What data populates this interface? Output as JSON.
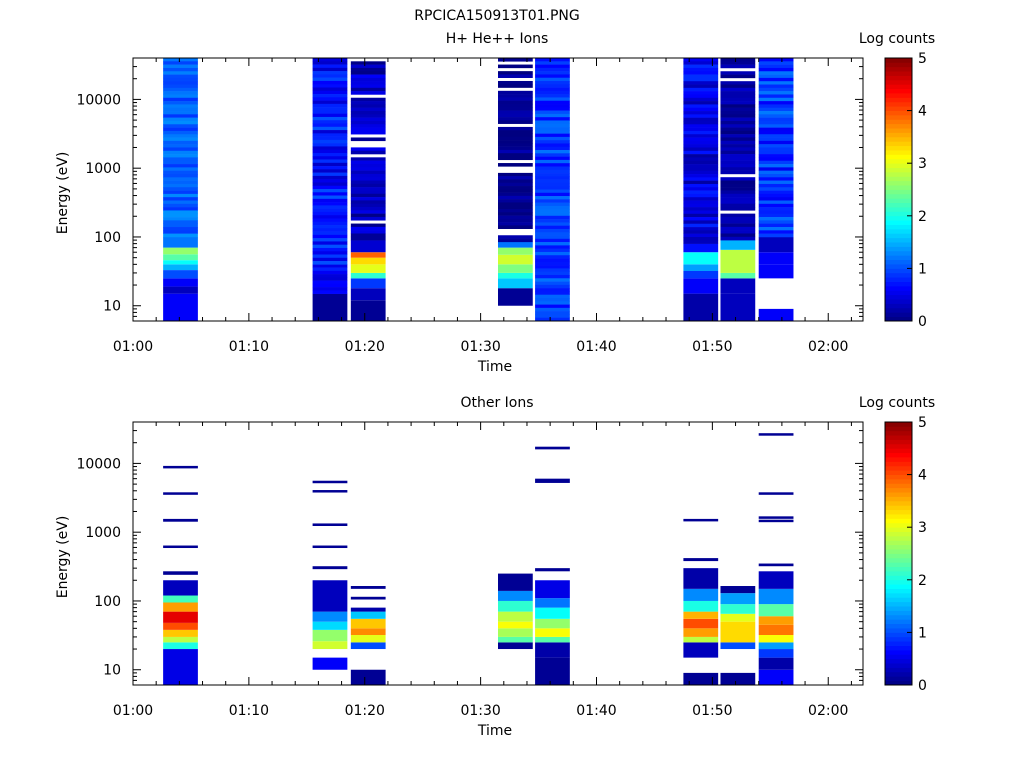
{
  "title": "RPCICA150913T01.PNG",
  "colorbar": {
    "label": "Log counts",
    "range": [
      0,
      5
    ],
    "ticks": [
      "0",
      "1",
      "2",
      "3",
      "4",
      "5"
    ],
    "colormap": "jet"
  },
  "chart_data": [
    {
      "type": "heatmap",
      "title": "H+ He++ Ions",
      "xlabel": "Time",
      "ylabel": "Energy (eV)",
      "x_ticks": [
        "01:00",
        "01:10",
        "01:20",
        "01:30",
        "01:40",
        "01:50",
        "02:00"
      ],
      "y_ticks": [
        "10",
        "100",
        "1000",
        "10000"
      ],
      "y_scale": "log",
      "xlim_minutes": [
        0,
        63
      ],
      "ylim": [
        6,
        40000
      ],
      "colorbar_label": "Log counts",
      "colorbar_range": [
        0,
        5
      ],
      "columns": [
        {
          "t_start": 2.6,
          "t_end": 5.6,
          "cells": [
            {
              "e_low": 6,
              "e_high": 15,
              "v": 0.6
            },
            {
              "e_low": 15,
              "e_high": 19,
              "v": 0.3
            },
            {
              "e_low": 19,
              "e_high": 25,
              "v": 0.6
            },
            {
              "e_low": 25,
              "e_high": 33,
              "v": 1.0
            },
            {
              "e_low": 33,
              "e_high": 40,
              "v": 1.5
            },
            {
              "e_low": 40,
              "e_high": 46,
              "v": 1.9
            },
            {
              "e_low": 46,
              "e_high": 56,
              "v": 2.3
            },
            {
              "e_low": 56,
              "e_high": 70,
              "v": 2.6
            },
            {
              "e_low": 70,
              "e_high": 100,
              "v": 1.2
            },
            {
              "e_low": 100,
              "e_high": 40000,
              "v": 1.1,
              "noise": 0.25
            }
          ]
        },
        {
          "t_start": 15.5,
          "t_end": 18.5,
          "cells": [
            {
              "e_low": 6,
              "e_high": 15,
              "v": 0.1
            },
            {
              "e_low": 15,
              "e_high": 40,
              "v": 0.6,
              "noise": 0.2
            },
            {
              "e_low": 40,
              "e_high": 40000,
              "v": 0.7,
              "noise": 0.35
            }
          ]
        },
        {
          "t_start": 18.8,
          "t_end": 21.8,
          "cells": [
            {
              "e_low": 6,
              "e_high": 12,
              "v": 0.1
            },
            {
              "e_low": 12,
              "e_high": 18,
              "v": 0.3
            },
            {
              "e_low": 18,
              "e_high": 25,
              "v": 0.9
            },
            {
              "e_low": 25,
              "e_high": 30,
              "v": 2.1
            },
            {
              "e_low": 30,
              "e_high": 40,
              "v": 3.0
            },
            {
              "e_low": 40,
              "e_high": 50,
              "v": 3.3
            },
            {
              "e_low": 50,
              "e_high": 60,
              "v": 3.9
            },
            {
              "e_low": 60,
              "e_high": 90,
              "v": 0.4
            },
            {
              "e_low": 90,
              "e_high": 40000,
              "v": 0.3,
              "noise": 0.3,
              "gaps": true
            }
          ]
        },
        {
          "t_start": 31.5,
          "t_end": 34.5,
          "cells": [
            {
              "e_low": 10,
              "e_high": 18,
              "v": 0.1
            },
            {
              "e_low": 18,
              "e_high": 25,
              "v": 1.6
            },
            {
              "e_low": 25,
              "e_high": 30,
              "v": 2.0
            },
            {
              "e_low": 30,
              "e_high": 40,
              "v": 2.5
            },
            {
              "e_low": 40,
              "e_high": 55,
              "v": 2.9
            },
            {
              "e_low": 55,
              "e_high": 70,
              "v": 2.6
            },
            {
              "e_low": 70,
              "e_high": 85,
              "v": 1.2
            },
            {
              "e_low": 85,
              "e_high": 40000,
              "v": 0.1,
              "noise": 0.15,
              "gaps": true
            }
          ]
        },
        {
          "t_start": 34.7,
          "t_end": 37.7,
          "cells": [
            {
              "e_low": 6,
              "e_high": 40000,
              "v": 0.9,
              "noise": 0.3
            }
          ]
        },
        {
          "t_start": 47.5,
          "t_end": 50.5,
          "cells": [
            {
              "e_low": 6,
              "e_high": 15,
              "v": 0.2
            },
            {
              "e_low": 15,
              "e_high": 25,
              "v": 0.6
            },
            {
              "e_low": 25,
              "e_high": 32,
              "v": 0.9
            },
            {
              "e_low": 32,
              "e_high": 40,
              "v": 1.4
            },
            {
              "e_low": 40,
              "e_high": 60,
              "v": 1.9
            },
            {
              "e_low": 60,
              "e_high": 80,
              "v": 0.7
            },
            {
              "e_low": 80,
              "e_high": 40000,
              "v": 0.5,
              "noise": 0.35
            }
          ]
        },
        {
          "t_start": 50.7,
          "t_end": 53.7,
          "cells": [
            {
              "e_low": 6,
              "e_high": 15,
              "v": 0.3
            },
            {
              "e_low": 15,
              "e_high": 25,
              "v": 0.3
            },
            {
              "e_low": 25,
              "e_high": 30,
              "v": 2.3
            },
            {
              "e_low": 30,
              "e_high": 65,
              "v": 2.8
            },
            {
              "e_low": 65,
              "e_high": 90,
              "v": 1.5
            },
            {
              "e_low": 90,
              "e_high": 40000,
              "v": 0.2,
              "noise": 0.2,
              "gaps": true
            }
          ]
        },
        {
          "t_start": 54.0,
          "t_end": 57.0,
          "cells": [
            {
              "e_low": 6,
              "e_high": 9,
              "v": 0.6
            },
            {
              "e_low": 25,
              "e_high": 40,
              "v": 0.6
            },
            {
              "e_low": 40,
              "e_high": 60,
              "v": 0.6
            },
            {
              "e_low": 60,
              "e_high": 100,
              "v": 0.3
            },
            {
              "e_low": 100,
              "e_high": 40000,
              "v": 0.9,
              "noise": 0.35
            }
          ]
        }
      ]
    },
    {
      "type": "heatmap",
      "title": "Other Ions",
      "xlabel": "Time",
      "ylabel": "Energy (eV)",
      "x_ticks": [
        "01:00",
        "01:10",
        "01:20",
        "01:30",
        "01:40",
        "01:50",
        "02:00"
      ],
      "y_ticks": [
        "10",
        "100",
        "1000",
        "10000"
      ],
      "y_scale": "log",
      "xlim_minutes": [
        0,
        63
      ],
      "ylim": [
        6,
        40000
      ],
      "colorbar_label": "Log counts",
      "colorbar_range": [
        0,
        5
      ],
      "columns": [
        {
          "t_start": 2.6,
          "t_end": 5.6,
          "cells": [
            {
              "e_low": 6,
              "e_high": 20,
              "v": 0.5
            },
            {
              "e_low": 20,
              "e_high": 25,
              "v": 2.0
            },
            {
              "e_low": 25,
              "e_high": 30,
              "v": 2.8
            },
            {
              "e_low": 30,
              "e_high": 38,
              "v": 3.4
            },
            {
              "e_low": 38,
              "e_high": 48,
              "v": 4.0
            },
            {
              "e_low": 48,
              "e_high": 70,
              "v": 4.5
            },
            {
              "e_low": 70,
              "e_high": 95,
              "v": 3.6
            },
            {
              "e_low": 95,
              "e_high": 120,
              "v": 2.2
            },
            {
              "e_low": 120,
              "e_high": 200,
              "v": 0.3
            },
            {
              "e_low": 240,
              "e_high": 270,
              "v": 0.1
            },
            {
              "e_low": 590,
              "e_high": 640,
              "v": 0.1
            },
            {
              "e_low": 1420,
              "e_high": 1560,
              "v": 0.1
            },
            {
              "e_low": 3500,
              "e_high": 3800,
              "v": 0.1
            },
            {
              "e_low": 8500,
              "e_high": 9200,
              "v": 0.1
            }
          ]
        },
        {
          "t_start": 15.5,
          "t_end": 18.5,
          "cells": [
            {
              "e_low": 10,
              "e_high": 15,
              "v": 0.6
            },
            {
              "e_low": 20,
              "e_high": 26,
              "v": 2.9
            },
            {
              "e_low": 26,
              "e_high": 38,
              "v": 2.6
            },
            {
              "e_low": 38,
              "e_high": 50,
              "v": 1.7
            },
            {
              "e_low": 50,
              "e_high": 70,
              "v": 1.3
            },
            {
              "e_low": 70,
              "e_high": 200,
              "v": 0.3
            },
            {
              "e_low": 290,
              "e_high": 320,
              "v": 0.1
            },
            {
              "e_low": 590,
              "e_high": 640,
              "v": 0.1
            },
            {
              "e_low": 1230,
              "e_high": 1340,
              "v": 0.1
            },
            {
              "e_low": 3800,
              "e_high": 4100,
              "v": 0.1
            },
            {
              "e_low": 5200,
              "e_high": 5600,
              "v": 0.1
            }
          ]
        },
        {
          "t_start": 18.8,
          "t_end": 21.8,
          "cells": [
            {
              "e_low": 6,
              "e_high": 10,
              "v": 0.1
            },
            {
              "e_low": 20,
              "e_high": 25,
              "v": 1.0
            },
            {
              "e_low": 25,
              "e_high": 32,
              "v": 3.0
            },
            {
              "e_low": 32,
              "e_high": 40,
              "v": 3.7
            },
            {
              "e_low": 40,
              "e_high": 55,
              "v": 3.4
            },
            {
              "e_low": 55,
              "e_high": 70,
              "v": 1.6
            },
            {
              "e_low": 70,
              "e_high": 80,
              "v": 0.2
            },
            {
              "e_low": 105,
              "e_high": 115,
              "v": 0.1
            },
            {
              "e_low": 150,
              "e_high": 165,
              "v": 0.1
            }
          ]
        },
        {
          "t_start": 31.5,
          "t_end": 34.5,
          "cells": [
            {
              "e_low": 20,
              "e_high": 25,
              "v": 0.1
            },
            {
              "e_low": 25,
              "e_high": 30,
              "v": 2.3
            },
            {
              "e_low": 30,
              "e_high": 40,
              "v": 2.7
            },
            {
              "e_low": 40,
              "e_high": 50,
              "v": 3.1
            },
            {
              "e_low": 50,
              "e_high": 70,
              "v": 2.8
            },
            {
              "e_low": 70,
              "e_high": 100,
              "v": 2.1
            },
            {
              "e_low": 100,
              "e_high": 140,
              "v": 1.3
            },
            {
              "e_low": 140,
              "e_high": 250,
              "v": 0.1
            }
          ]
        },
        {
          "t_start": 34.7,
          "t_end": 37.7,
          "cells": [
            {
              "e_low": 6,
              "e_high": 15,
              "v": 0.1
            },
            {
              "e_low": 15,
              "e_high": 25,
              "v": 0.2
            },
            {
              "e_low": 25,
              "e_high": 30,
              "v": 2.3
            },
            {
              "e_low": 30,
              "e_high": 40,
              "v": 3.1
            },
            {
              "e_low": 40,
              "e_high": 55,
              "v": 2.6
            },
            {
              "e_low": 55,
              "e_high": 80,
              "v": 1.9
            },
            {
              "e_low": 80,
              "e_high": 110,
              "v": 1.2
            },
            {
              "e_low": 110,
              "e_high": 200,
              "v": 0.5
            },
            {
              "e_low": 270,
              "e_high": 300,
              "v": 0.1
            },
            {
              "e_low": 5200,
              "e_high": 6000,
              "v": 0.1
            },
            {
              "e_low": 16000,
              "e_high": 17500,
              "v": 0.1
            }
          ]
        },
        {
          "t_start": 47.5,
          "t_end": 50.5,
          "cells": [
            {
              "e_low": 6,
              "e_high": 9,
              "v": 0.1
            },
            {
              "e_low": 15,
              "e_high": 25,
              "v": 0.3
            },
            {
              "e_low": 25,
              "e_high": 30,
              "v": 2.8
            },
            {
              "e_low": 30,
              "e_high": 40,
              "v": 3.6
            },
            {
              "e_low": 40,
              "e_high": 55,
              "v": 4.0
            },
            {
              "e_low": 55,
              "e_high": 70,
              "v": 3.5
            },
            {
              "e_low": 70,
              "e_high": 100,
              "v": 2.0
            },
            {
              "e_low": 100,
              "e_high": 150,
              "v": 1.3
            },
            {
              "e_low": 150,
              "e_high": 300,
              "v": 0.2
            },
            {
              "e_low": 380,
              "e_high": 420,
              "v": 0.1
            },
            {
              "e_low": 1450,
              "e_high": 1560,
              "v": 0.1
            }
          ]
        },
        {
          "t_start": 50.7,
          "t_end": 53.7,
          "cells": [
            {
              "e_low": 6,
              "e_high": 9,
              "v": 0.1
            },
            {
              "e_low": 20,
              "e_high": 25,
              "v": 1.0
            },
            {
              "e_low": 25,
              "e_high": 50,
              "v": 3.3
            },
            {
              "e_low": 50,
              "e_high": 65,
              "v": 3.0
            },
            {
              "e_low": 65,
              "e_high": 90,
              "v": 2.1
            },
            {
              "e_low": 90,
              "e_high": 130,
              "v": 1.4
            },
            {
              "e_low": 130,
              "e_high": 165,
              "v": 0.1
            }
          ]
        },
        {
          "t_start": 54.0,
          "t_end": 57.0,
          "cells": [
            {
              "e_low": 6,
              "e_high": 10,
              "v": 0.6
            },
            {
              "e_low": 10,
              "e_high": 15,
              "v": 0.2
            },
            {
              "e_low": 15,
              "e_high": 20,
              "v": 0.9
            },
            {
              "e_low": 20,
              "e_high": 25,
              "v": 1.4
            },
            {
              "e_low": 25,
              "e_high": 32,
              "v": 3.1
            },
            {
              "e_low": 32,
              "e_high": 45,
              "v": 3.8
            },
            {
              "e_low": 45,
              "e_high": 60,
              "v": 3.6
            },
            {
              "e_low": 60,
              "e_high": 90,
              "v": 2.3
            },
            {
              "e_low": 90,
              "e_high": 150,
              "v": 1.3
            },
            {
              "e_low": 150,
              "e_high": 270,
              "v": 0.3
            },
            {
              "e_low": 320,
              "e_high": 350,
              "v": 0.1
            },
            {
              "e_low": 1400,
              "e_high": 1520,
              "v": 0.1
            },
            {
              "e_low": 1600,
              "e_high": 1700,
              "v": 0.1
            },
            {
              "e_low": 3500,
              "e_high": 3800,
              "v": 0.1
            },
            {
              "e_low": 25500,
              "e_high": 27500,
              "v": 0.1
            }
          ]
        }
      ]
    }
  ]
}
